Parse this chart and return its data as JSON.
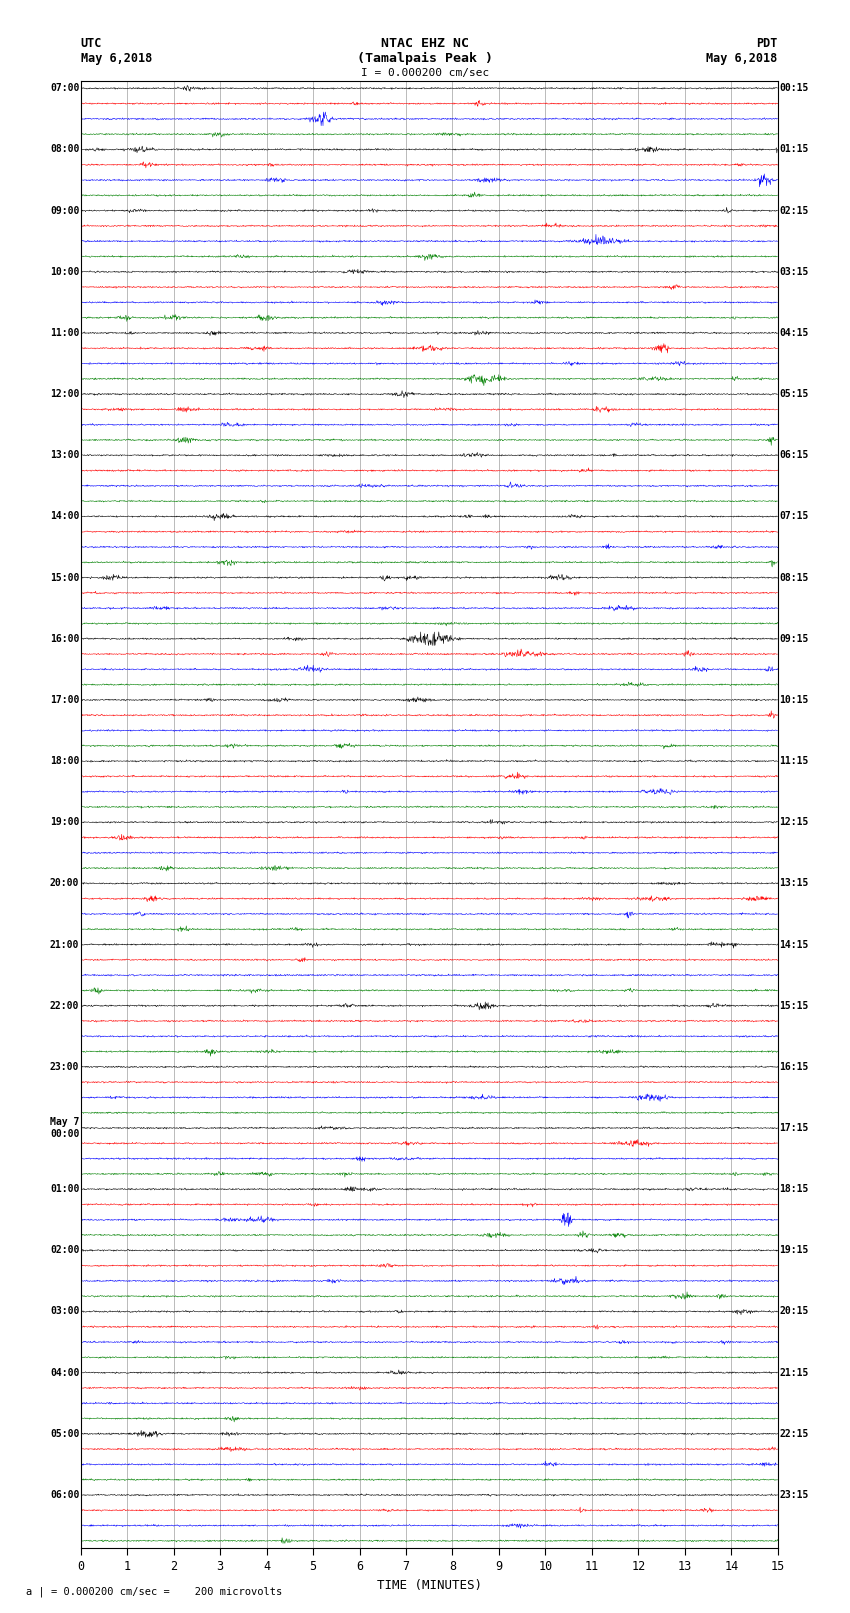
{
  "title_line1": "NTAC EHZ NC",
  "title_line2": "(Tamalpais Peak )",
  "scale_label": "I = 0.000200 cm/sec",
  "utc_label": "UTC",
  "utc_date": "May 6,2018",
  "pdt_label": "PDT",
  "pdt_date": "May 6,2018",
  "bottom_label": "a | = 0.000200 cm/sec =    200 microvolts",
  "xlabel": "TIME (MINUTES)",
  "background_color": "#ffffff",
  "trace_colors": [
    "#000000",
    "#ff0000",
    "#0000ff",
    "#008000"
  ],
  "grid_color": "#888888",
  "left_time_labels": [
    "07:00",
    "08:00",
    "09:00",
    "10:00",
    "11:00",
    "12:00",
    "13:00",
    "14:00",
    "15:00",
    "16:00",
    "17:00",
    "18:00",
    "19:00",
    "20:00",
    "21:00",
    "22:00",
    "23:00",
    "May 7\n00:00",
    "01:00",
    "02:00",
    "03:00",
    "04:00",
    "05:00",
    "06:00"
  ],
  "right_time_labels": [
    "00:15",
    "01:15",
    "02:15",
    "03:15",
    "04:15",
    "05:15",
    "06:15",
    "07:15",
    "08:15",
    "09:15",
    "10:15",
    "11:15",
    "12:15",
    "13:15",
    "14:15",
    "15:15",
    "16:15",
    "17:15",
    "18:15",
    "19:15",
    "20:15",
    "21:15",
    "22:15",
    "23:15"
  ],
  "n_groups": 24,
  "n_traces_per_group": 4,
  "n_rows": 96,
  "n_pts": 1500,
  "noise_seed": 42,
  "base_noise_amp": 0.08,
  "event_probability": 0.12,
  "event_amp_scale": 3.5
}
